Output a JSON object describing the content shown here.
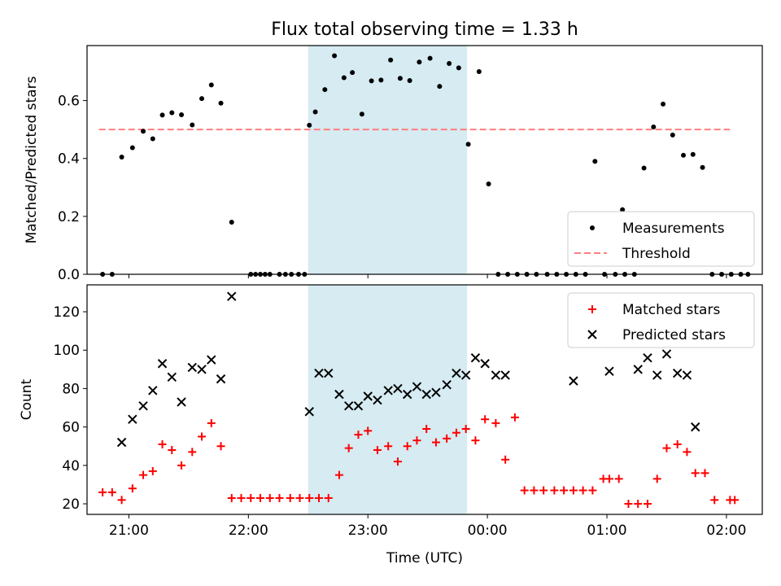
{
  "title": "Flux total observing time = 1.33 h",
  "colors": {
    "measurements": "#000000",
    "threshold": "#ff7f7f",
    "matched": "#ff0000",
    "predicted": "#000000",
    "highlight": "#add8e6"
  },
  "chart_data": [
    {
      "type": "scatter",
      "ylabel": "Matched/Predicted stars",
      "ylim": [
        0,
        0.79
      ],
      "yticks": [
        0.0,
        0.2,
        0.4,
        0.6
      ],
      "ytick_labels": [
        "0.0",
        "0.2",
        "0.4",
        "0.6"
      ],
      "xlim": [
        20.65,
        26.3
      ],
      "highlight_span": [
        22.5,
        23.83
      ],
      "legend": {
        "placement": "lower-right",
        "entries": [
          "Measurements",
          "Threshold"
        ]
      },
      "threshold": {
        "name": "Threshold",
        "y": 0.5,
        "x_range": [
          20.75,
          26.03
        ]
      },
      "series": [
        {
          "name": "Measurements",
          "marker": "dot",
          "x": [
            20.78,
            20.86,
            20.94,
            21.03,
            21.12,
            21.2,
            21.28,
            21.36,
            21.44,
            21.53,
            21.61,
            21.69,
            21.77,
            21.86,
            22.02,
            22.06,
            22.1,
            22.14,
            22.18,
            22.26,
            22.31,
            22.36,
            22.42,
            22.47,
            22.51,
            22.56,
            22.64,
            22.72,
            22.8,
            22.87,
            22.95,
            23.03,
            23.11,
            23.19,
            23.27,
            23.35,
            23.43,
            23.52,
            23.6,
            23.68,
            23.76,
            23.84,
            23.93,
            24.01,
            24.09,
            24.17,
            24.25,
            24.33,
            24.41,
            24.5,
            24.58,
            24.66,
            24.74,
            24.82,
            24.9,
            24.98,
            25.07,
            25.13,
            25.15,
            25.23,
            25.31,
            25.39,
            25.47,
            25.55,
            25.64,
            25.72,
            25.8,
            25.88,
            25.96,
            26.04,
            26.12,
            26.18
          ],
          "y": [
            0.0,
            0.0,
            0.405,
            0.437,
            0.494,
            0.468,
            0.55,
            0.558,
            0.551,
            0.516,
            0.607,
            0.654,
            0.591,
            0.18,
            0.0,
            0.0,
            0.0,
            0.0,
            0.0,
            0.0,
            0.0,
            0.0,
            0.0,
            0.0,
            0.515,
            0.561,
            0.638,
            0.755,
            0.679,
            0.697,
            0.553,
            0.668,
            0.671,
            0.74,
            0.677,
            0.669,
            0.733,
            0.746,
            0.649,
            0.728,
            0.713,
            0.449,
            0.7,
            0.312,
            0.0,
            0.0,
            0.0,
            0.0,
            0.0,
            0.0,
            0.0,
            0.0,
            0.0,
            0.0,
            0.39,
            0.0,
            0.0,
            0.223,
            0.0,
            0.0,
            0.367,
            0.509,
            0.588,
            0.481,
            0.411,
            0.414,
            0.369,
            0.0,
            0.0,
            0.0,
            0.0,
            0.0
          ]
        }
      ]
    },
    {
      "type": "scatter",
      "ylabel": "Count",
      "xlabel": "Time (UTC)",
      "ylim": [
        14.5,
        134
      ],
      "yticks": [
        20,
        40,
        60,
        80,
        100,
        120
      ],
      "ytick_labels": [
        "20",
        "40",
        "60",
        "80",
        "100",
        "120"
      ],
      "xlim": [
        20.65,
        26.3
      ],
      "xticks": [
        21,
        22,
        23,
        24,
        25,
        26
      ],
      "xtick_labels": [
        "21:00",
        "22:00",
        "23:00",
        "00:00",
        "01:00",
        "02:00"
      ],
      "highlight_span": [
        22.5,
        23.83
      ],
      "legend": {
        "placement": "upper-right",
        "entries": [
          "Matched stars",
          "Predicted stars"
        ]
      },
      "series": [
        {
          "name": "Matched stars",
          "marker": "plus",
          "x": [
            20.78,
            20.86,
            20.94,
            21.03,
            21.12,
            21.2,
            21.28,
            21.36,
            21.44,
            21.53,
            21.61,
            21.69,
            21.77,
            21.86,
            21.94,
            22.02,
            22.1,
            22.18,
            22.26,
            22.35,
            22.43,
            22.51,
            22.59,
            22.67,
            22.76,
            22.84,
            22.92,
            23.0,
            23.08,
            23.17,
            23.25,
            23.33,
            23.41,
            23.49,
            23.57,
            23.66,
            23.74,
            23.82,
            23.9,
            23.98,
            24.07,
            24.15,
            24.23,
            24.31,
            24.39,
            24.47,
            24.56,
            24.64,
            24.72,
            24.8,
            24.88,
            24.97,
            25.02,
            25.1,
            25.18,
            25.26,
            25.34,
            25.42,
            25.5,
            25.59,
            25.67,
            25.74,
            25.82,
            25.9,
            26.03,
            26.07
          ],
          "y": [
            26,
            26,
            22,
            28,
            35,
            37,
            51,
            48,
            40,
            47,
            55,
            62,
            50,
            23,
            23,
            23,
            23,
            23,
            23,
            23,
            23,
            23,
            23,
            23,
            35,
            49,
            56,
            58,
            48,
            50,
            42,
            50,
            53,
            59,
            52,
            54,
            57,
            59,
            53,
            64,
            62,
            43,
            65,
            27,
            27,
            27,
            27,
            27,
            27,
            27,
            27,
            33,
            33,
            33,
            20,
            20,
            20,
            33,
            49,
            51,
            47,
            36,
            36,
            22,
            22,
            22
          ]
        },
        {
          "name": "Predicted stars",
          "marker": "x",
          "x": [
            20.94,
            21.03,
            21.12,
            21.2,
            21.28,
            21.36,
            21.44,
            21.53,
            21.61,
            21.69,
            21.77,
            21.86,
            22.51,
            22.59,
            22.67,
            22.76,
            22.84,
            22.92,
            23.0,
            23.08,
            23.17,
            23.25,
            23.33,
            23.41,
            23.49,
            23.57,
            23.66,
            23.74,
            23.82,
            23.9,
            23.98,
            24.07,
            24.15,
            24.72,
            25.02,
            25.26,
            25.34,
            25.42,
            25.5,
            25.59,
            25.67,
            25.74
          ],
          "y": [
            52,
            64,
            71,
            79,
            93,
            86,
            73,
            91,
            90,
            95,
            85,
            128,
            68,
            88,
            88,
            77,
            71,
            71,
            76,
            74,
            79,
            80,
            77,
            81,
            77,
            78,
            82,
            88,
            87,
            96,
            93,
            87,
            87,
            84,
            89,
            90,
            96,
            87,
            98,
            88,
            87,
            60
          ]
        }
      ]
    }
  ]
}
